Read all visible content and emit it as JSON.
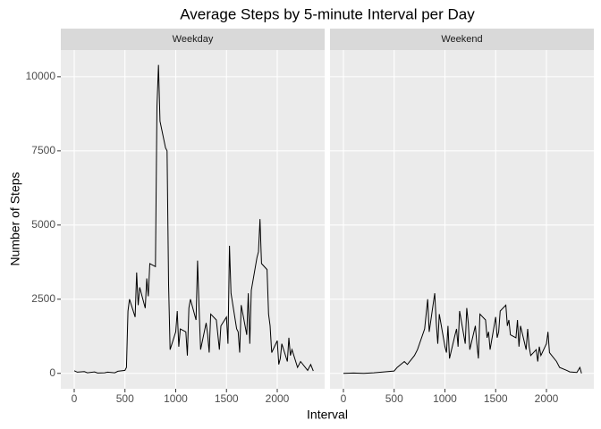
{
  "chart_data": {
    "type": "line",
    "title": "Average Steps by 5-minute Interval per Day",
    "x_label": "Interval",
    "y_label": "Number of Steps",
    "xlim": [
      -132,
      2467
    ],
    "ylim": [
      -520,
      10900
    ],
    "xticks": [
      0,
      500,
      1000,
      1500,
      2000
    ],
    "yticks": [
      0,
      2500,
      5000,
      7500,
      10000
    ],
    "grid": true,
    "color": "#000000",
    "facets": [
      {
        "name": "Weekday",
        "x": [
          0,
          30,
          100,
          130,
          200,
          230,
          300,
          330,
          400,
          430,
          500,
          515,
          530,
          545,
          600,
          615,
          630,
          645,
          700,
          715,
          730,
          745,
          800,
          815,
          830,
          845,
          900,
          915,
          930,
          945,
          1000,
          1015,
          1030,
          1045,
          1100,
          1115,
          1130,
          1145,
          1200,
          1215,
          1230,
          1245,
          1300,
          1315,
          1330,
          1345,
          1400,
          1415,
          1430,
          1445,
          1500,
          1515,
          1530,
          1545,
          1600,
          1615,
          1630,
          1645,
          1700,
          1715,
          1730,
          1745,
          1800,
          1815,
          1830,
          1845,
          1900,
          1915,
          1930,
          1945,
          2000,
          2015,
          2030,
          2045,
          2100,
          2115,
          2130,
          2145,
          2200,
          2230,
          2300,
          2330,
          2355
        ],
        "values": [
          90,
          40,
          60,
          20,
          50,
          10,
          20,
          40,
          20,
          70,
          100,
          200,
          2100,
          2500,
          1900,
          3400,
          2300,
          2900,
          2200,
          3200,
          2600,
          3700,
          3600,
          9000,
          10400,
          8500,
          7600,
          7500,
          3000,
          800,
          1400,
          2100,
          900,
          1500,
          1400,
          600,
          2200,
          2500,
          1800,
          3800,
          2200,
          800,
          1700,
          1300,
          700,
          2000,
          1800,
          1300,
          800,
          1600,
          1900,
          1000,
          4300,
          2700,
          1500,
          1400,
          700,
          2300,
          1300,
          2700,
          1000,
          2800,
          3900,
          4100,
          5200,
          3700,
          3500,
          2000,
          1600,
          700,
          1100,
          300,
          500,
          1000,
          400,
          1200,
          600,
          800,
          200,
          400,
          100,
          300,
          80
        ]
      },
      {
        "name": "Weekend",
        "x": [
          0,
          100,
          200,
          300,
          400,
          500,
          530,
          600,
          630,
          700,
          730,
          800,
          815,
          830,
          845,
          900,
          915,
          930,
          945,
          1000,
          1015,
          1030,
          1045,
          1100,
          1115,
          1130,
          1145,
          1200,
          1215,
          1230,
          1245,
          1300,
          1315,
          1330,
          1345,
          1400,
          1415,
          1430,
          1445,
          1500,
          1515,
          1530,
          1545,
          1600,
          1615,
          1630,
          1645,
          1700,
          1715,
          1730,
          1745,
          1800,
          1815,
          1830,
          1845,
          1900,
          1915,
          1930,
          1945,
          2000,
          2015,
          2030,
          2100,
          2130,
          2200,
          2230,
          2300,
          2330,
          2345
        ],
        "values": [
          0,
          10,
          0,
          20,
          50,
          80,
          200,
          400,
          300,
          600,
          800,
          1500,
          2000,
          2500,
          1400,
          2700,
          1700,
          1000,
          2000,
          900,
          700,
          1600,
          500,
          1300,
          1500,
          900,
          2100,
          1000,
          2200,
          1700,
          800,
          1600,
          1000,
          500,
          2000,
          1800,
          1200,
          1400,
          800,
          1900,
          1200,
          1400,
          2100,
          2300,
          1600,
          1800,
          1300,
          1200,
          1800,
          900,
          1600,
          800,
          1500,
          900,
          600,
          800,
          400,
          900,
          600,
          1000,
          1400,
          700,
          400,
          200,
          100,
          50,
          30,
          200,
          0
        ]
      }
    ]
  }
}
